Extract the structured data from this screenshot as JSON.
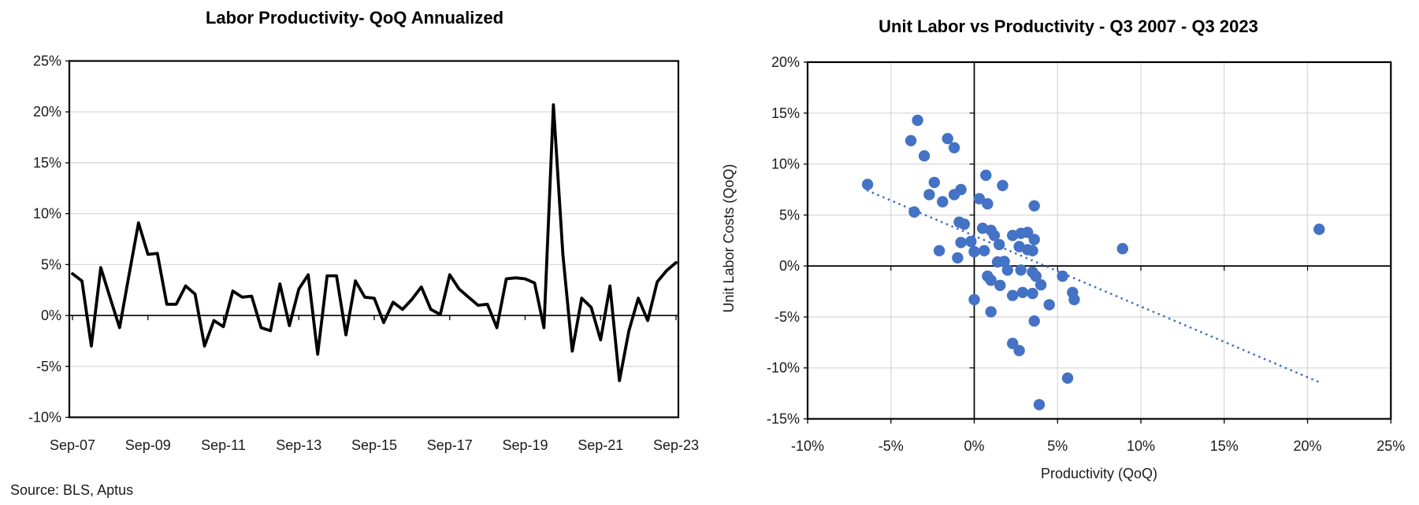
{
  "page": {
    "source_note": "Source: BLS, Aptus",
    "background_color": "#FFFFFF"
  },
  "chart_data": [
    {
      "type": "line",
      "title": "Labor Productivity- QoQ Annualized",
      "x_tick_labels": [
        "Sep-07",
        "Sep-09",
        "Sep-11",
        "Sep-13",
        "Sep-15",
        "Sep-17",
        "Sep-19",
        "Sep-21",
        "Sep-23"
      ],
      "x_tick_step_quarters": 8,
      "y_ticks": [
        25,
        20,
        15,
        10,
        5,
        0,
        -5,
        -10
      ],
      "ylim": [
        -10,
        25
      ],
      "grid": "horizontal-only",
      "line_color": "#000000",
      "grid_color": "#D9D9D9",
      "values": [
        4.1,
        3.4,
        -3.0,
        4.7,
        1.7,
        -1.2,
        4.0,
        9.1,
        6.0,
        6.1,
        1.1,
        1.1,
        2.9,
        2.1,
        -3.0,
        -0.5,
        -1.1,
        2.4,
        1.8,
        1.9,
        -1.2,
        -1.5,
        3.1,
        -1.0,
        2.6,
        4.0,
        -3.8,
        3.9,
        3.9,
        -1.9,
        3.4,
        1.8,
        1.7,
        -0.7,
        1.3,
        0.6,
        1.6,
        2.8,
        0.6,
        0.1,
        4.0,
        2.6,
        1.8,
        1.0,
        1.1,
        -1.2,
        3.6,
        3.7,
        3.6,
        3.2,
        -1.2,
        20.7,
        6.0,
        -3.5,
        1.7,
        0.8,
        -2.4,
        2.9,
        -6.4,
        -1.5,
        1.7,
        -0.5,
        3.3,
        4.4,
        5.2
      ]
    },
    {
      "type": "scatter",
      "title": "Unit Labor vs Productivity - Q3 2007 - Q3 2023",
      "xlabel": "Productivity (QoQ)",
      "ylabel": "Unit Labor Costs (QoQ)",
      "x_ticks": [
        -10,
        -5,
        0,
        5,
        10,
        15,
        20,
        25
      ],
      "y_ticks": [
        20,
        15,
        10,
        5,
        0,
        -5,
        -10,
        -15
      ],
      "xlim": [
        -10,
        25
      ],
      "ylim": [
        -15,
        20
      ],
      "grid": "full",
      "point_color": "#4472C4",
      "trend_color": "#4472C4",
      "grid_color": "#D9D9D9",
      "points": [
        [
          -3.4,
          14.3
        ],
        [
          -3.8,
          12.3
        ],
        [
          -1.6,
          12.5
        ],
        [
          -1.2,
          11.6
        ],
        [
          -3.0,
          10.8
        ],
        [
          -6.4,
          8.0
        ],
        [
          -2.4,
          8.2
        ],
        [
          0.7,
          8.9
        ],
        [
          1.7,
          7.9
        ],
        [
          -0.8,
          7.5
        ],
        [
          -1.2,
          7.0
        ],
        [
          -2.7,
          7.0
        ],
        [
          -1.9,
          6.3
        ],
        [
          0.3,
          6.6
        ],
        [
          0.8,
          6.1
        ],
        [
          3.6,
          5.9
        ],
        [
          -3.6,
          5.3
        ],
        [
          -0.9,
          4.3
        ],
        [
          -0.6,
          4.1
        ],
        [
          0.5,
          3.7
        ],
        [
          1.0,
          3.5
        ],
        [
          1.2,
          3.0
        ],
        [
          2.3,
          3.0
        ],
        [
          2.8,
          3.2
        ],
        [
          3.2,
          3.3
        ],
        [
          3.6,
          2.6
        ],
        [
          -0.8,
          2.3
        ],
        [
          -0.2,
          2.4
        ],
        [
          0.0,
          1.4
        ],
        [
          0.6,
          1.5
        ],
        [
          1.5,
          2.1
        ],
        [
          2.7,
          1.9
        ],
        [
          3.2,
          1.6
        ],
        [
          3.5,
          1.5
        ],
        [
          -2.1,
          1.5
        ],
        [
          -1.0,
          0.8
        ],
        [
          8.9,
          1.7
        ],
        [
          20.7,
          3.6
        ],
        [
          1.4,
          0.4
        ],
        [
          1.8,
          0.45
        ],
        [
          2.0,
          -0.4
        ],
        [
          2.8,
          -0.4
        ],
        [
          3.5,
          -0.6
        ],
        [
          3.7,
          -1.0
        ],
        [
          4.0,
          -1.85
        ],
        [
          0.8,
          -1.0
        ],
        [
          1.0,
          -1.4
        ],
        [
          1.55,
          -1.9
        ],
        [
          2.3,
          -2.9
        ],
        [
          2.9,
          -2.6
        ],
        [
          3.5,
          -2.7
        ],
        [
          4.5,
          -3.8
        ],
        [
          0.0,
          -3.3
        ],
        [
          1.0,
          -4.5
        ],
        [
          3.6,
          -5.4
        ],
        [
          5.9,
          -2.6
        ],
        [
          6.0,
          -3.3
        ],
        [
          5.3,
          -1.0
        ],
        [
          2.3,
          -7.6
        ],
        [
          2.7,
          -8.3
        ],
        [
          5.6,
          -11.0
        ],
        [
          3.9,
          -13.6
        ]
      ],
      "trendline": {
        "x1": -6.4,
        "y1": 7.4,
        "x2": 20.7,
        "y2": -11.4,
        "style": "dotted"
      }
    }
  ]
}
